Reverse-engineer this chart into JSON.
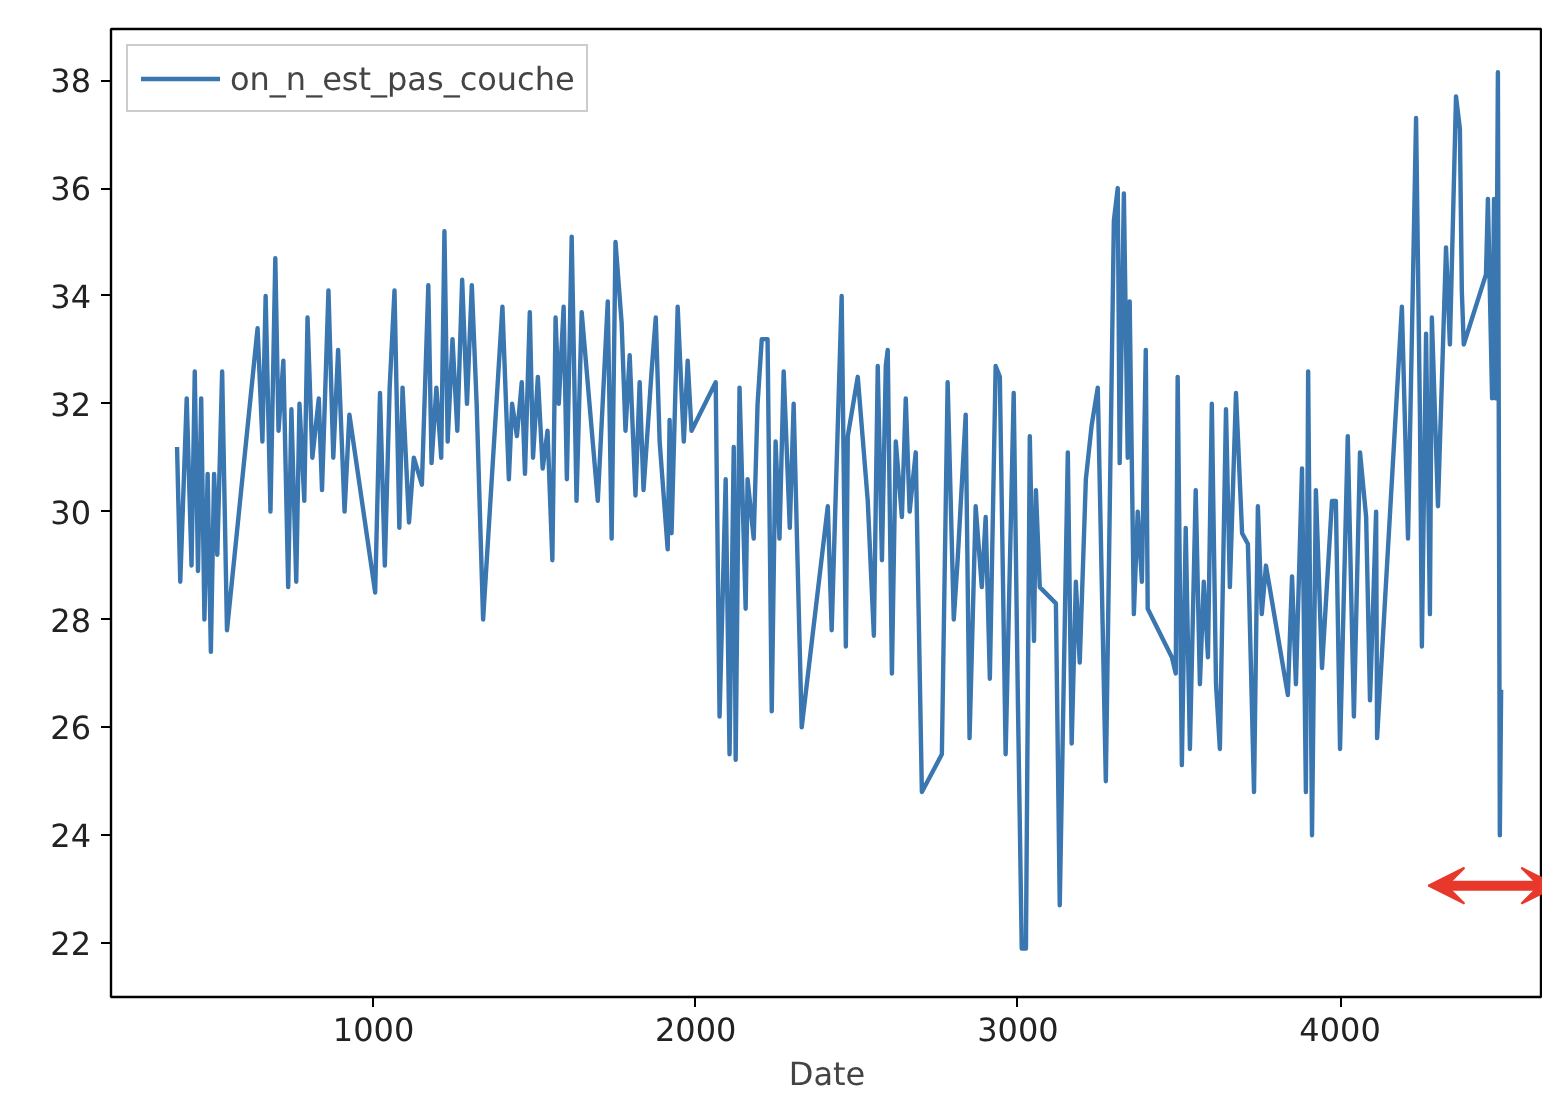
{
  "chart_data": {
    "type": "line",
    "xlabel": "Date",
    "xlim": [
      185,
      4630
    ],
    "ylim": [
      21.0,
      38.95
    ],
    "xticks": [
      1000,
      2000,
      3000,
      4000
    ],
    "yticks": [
      22,
      24,
      26,
      28,
      30,
      32,
      34,
      36,
      38
    ],
    "grid": false,
    "legend": "top left",
    "line_style": "solid",
    "marker": "none",
    "series": [
      {
        "name": "on_n_est_pas_couche",
        "color": "#3a76af",
        "x": [
          390,
          400,
          420,
          435,
          445,
          455,
          465,
          475,
          485,
          495,
          505,
          515,
          530,
          545,
          640,
          655,
          665,
          680,
          695,
          705,
          720,
          735,
          745,
          760,
          770,
          785,
          795,
          810,
          830,
          840,
          860,
          875,
          890,
          910,
          925,
          1005,
          1020,
          1035,
          1050,
          1065,
          1080,
          1090,
          1110,
          1125,
          1150,
          1170,
          1180,
          1195,
          1210,
          1220,
          1230,
          1245,
          1260,
          1275,
          1290,
          1305,
          1320,
          1340,
          1400,
          1420,
          1430,
          1445,
          1460,
          1470,
          1485,
          1495,
          1510,
          1525,
          1540,
          1555,
          1565,
          1575,
          1590,
          1600,
          1615,
          1630,
          1646,
          1696,
          1727,
          1739,
          1751,
          1770,
          1782,
          1795,
          1813,
          1826,
          1838,
          1863,
          1876,
          1888,
          1913,
          1919,
          1925,
          1944,
          1963,
          1975,
          1987,
          2062,
          2074,
          2093,
          2105,
          2118,
          2124,
          2136,
          2155,
          2161,
          2180,
          2192,
          2205,
          2223,
          2236,
          2248,
          2260,
          2273,
          2292,
          2304,
          2316,
          2329,
          2410,
          2422,
          2453,
          2466,
          2472,
          2503,
          2534,
          2553,
          2565,
          2578,
          2590,
          2596,
          2609,
          2621,
          2640,
          2652,
          2664,
          2683,
          2702,
          2764,
          2782,
          2801,
          2813,
          2838,
          2850,
          2869,
          2888,
          2900,
          2913,
          2931,
          2944,
          2962,
          2987,
          3000,
          3012,
          3025,
          3037,
          3050,
          3056,
          3068,
          3118,
          3130,
          3155,
          3167,
          3180,
          3192,
          3211,
          3229,
          3248,
          3273,
          3298,
          3310,
          3316,
          3329,
          3341,
          3347,
          3360,
          3372,
          3385,
          3397,
          3403,
          3478,
          3490,
          3496,
          3509,
          3521,
          3534,
          3552,
          3565,
          3577,
          3590,
          3602,
          3615,
          3627,
          3646,
          3658,
          3677,
          3696,
          3714,
          3733,
          3745,
          3757,
          3770,
          3838,
          3851,
          3863,
          3882,
          3894,
          3901,
          3913,
          3925,
          3944,
          3975,
          3987,
          4000,
          4024,
          4043,
          4062,
          4081,
          4093,
          4112,
          4115,
          4192,
          4211,
          4236,
          4248,
          4254,
          4267,
          4279,
          4285,
          4304,
          4329,
          4341,
          4360,
          4372,
          4378,
          4384,
          4453,
          4459,
          4472,
          4478,
          4484,
          4490,
          4496,
          4500
        ],
        "values": [
          31.2,
          28.7,
          32.1,
          29.0,
          32.6,
          28.9,
          32.1,
          28.0,
          30.7,
          27.4,
          30.7,
          29.2,
          32.6,
          27.8,
          33.4,
          31.3,
          34.0,
          30.0,
          34.7,
          31.5,
          32.8,
          28.6,
          31.9,
          28.7,
          32.0,
          30.2,
          33.6,
          31.0,
          32.1,
          30.4,
          34.1,
          31.0,
          33.0,
          30.0,
          31.8,
          28.5,
          32.2,
          29.0,
          32.3,
          34.1,
          29.7,
          32.3,
          29.8,
          31.0,
          30.5,
          34.2,
          30.9,
          32.3,
          31.0,
          35.2,
          31.3,
          33.2,
          31.5,
          34.3,
          32.0,
          34.2,
          32.0,
          28.0,
          33.8,
          30.6,
          32.0,
          31.4,
          32.4,
          30.7,
          33.7,
          31.0,
          32.5,
          30.8,
          31.5,
          29.1,
          33.6,
          32.0,
          33.8,
          30.6,
          35.1,
          30.2,
          33.7,
          30.2,
          33.9,
          29.5,
          35.0,
          33.5,
          31.5,
          32.9,
          30.3,
          32.4,
          30.4,
          32.6,
          33.6,
          31.3,
          29.3,
          31.7,
          29.6,
          33.8,
          31.3,
          32.8,
          31.5,
          32.4,
          26.2,
          30.6,
          25.5,
          31.2,
          25.4,
          32.3,
          28.2,
          30.6,
          29.5,
          32.0,
          33.2,
          33.2,
          26.3,
          31.3,
          29.5,
          32.6,
          29.7,
          32.0,
          29.1,
          26.0,
          30.1,
          27.8,
          34.0,
          27.5,
          31.4,
          32.5,
          30.2,
          27.7,
          32.7,
          29.1,
          32.7,
          33.0,
          27.0,
          31.3,
          29.9,
          32.1,
          30.0,
          31.1,
          24.8,
          25.5,
          32.4,
          28.0,
          29.1,
          31.8,
          25.8,
          30.1,
          28.6,
          29.9,
          26.9,
          32.7,
          32.5,
          25.5,
          32.2,
          26.5,
          21.9,
          21.9,
          31.4,
          27.6,
          30.4,
          28.6,
          28.3,
          22.7,
          31.1,
          25.7,
          28.7,
          27.2,
          30.6,
          31.6,
          32.3,
          25.0,
          35.4,
          36.0,
          30.9,
          35.9,
          31.0,
          33.9,
          28.1,
          30.0,
          28.7,
          33.0,
          28.2,
          27.3,
          27.0,
          32.5,
          25.3,
          29.7,
          25.6,
          30.4,
          26.8,
          28.7,
          27.3,
          32.0,
          26.8,
          25.6,
          31.9,
          28.6,
          32.2,
          29.6,
          29.4,
          24.8,
          30.1,
          28.1,
          29.0,
          26.6,
          28.8,
          26.8,
          30.8,
          24.8,
          32.6,
          24.0,
          30.4,
          27.1,
          30.2,
          30.2,
          25.6,
          31.4,
          26.2,
          31.1,
          29.9,
          26.5,
          30.0,
          25.8,
          33.8,
          29.5,
          37.3,
          31.8,
          27.5,
          33.3,
          28.1,
          33.6,
          30.1,
          34.9,
          33.1,
          37.7,
          37.1,
          34.1,
          33.1,
          34.4,
          35.8,
          32.1,
          35.8,
          32.1,
          38.15,
          24.0,
          26.7
        ]
      }
    ]
  }
}
